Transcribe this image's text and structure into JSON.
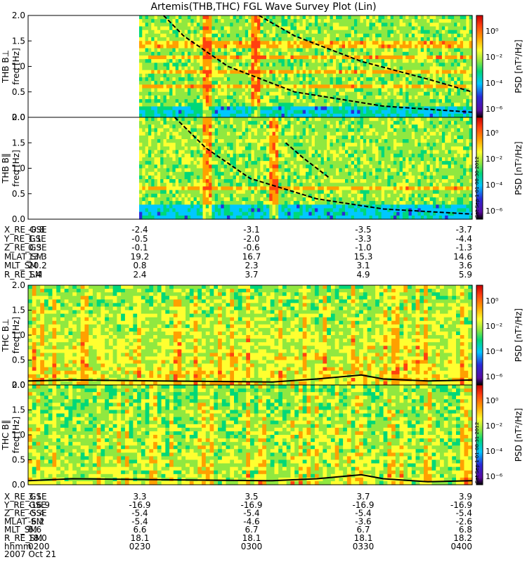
{
  "title": "Artemis(THB,THC) FGL Wave Survey Plot (Lin)",
  "colors": {
    "colormap": [
      "#000000",
      "#5a0aa0",
      "#2a2ad8",
      "#00c8ff",
      "#00d878",
      "#90e840",
      "#ffff30",
      "#ffa000",
      "#ff4010",
      "#c80000"
    ],
    "overlay_line": "#000000"
  },
  "chart_data": [
    {
      "type": "heatmap",
      "panel": "THB Bperp",
      "ylabel_prefix": "THB B",
      "ylabel_symbol": "⊥",
      "ylabel_freq": "freq [Hz]",
      "yticks": [
        "0.0",
        "0.5",
        "1.0",
        "1.5",
        "2.0"
      ],
      "ylim": [
        0,
        2.0
      ],
      "colorbar_label": "PSD [nT²/Hz]",
      "colorbar_ticks": [
        "10⁰",
        "10⁻²",
        "10⁻⁴",
        "10⁻⁶"
      ],
      "data_start_fraction": 0.25,
      "gap_fraction": 0.0,
      "strong_bands_hz": [
        0.25,
        0.6,
        0.9,
        1.2,
        1.45
      ],
      "vertical_spikes": [
        0.4,
        0.51
      ],
      "overlays": [
        {
          "style": "dashed",
          "points": [
            [
              0.305,
              2.0
            ],
            [
              0.35,
              1.6
            ],
            [
              0.45,
              1.0
            ],
            [
              0.6,
              0.5
            ],
            [
              0.8,
              0.22
            ],
            [
              1.0,
              0.1
            ]
          ]
        },
        {
          "style": "dashed",
          "points": [
            [
              0.52,
              2.0
            ],
            [
              0.6,
              1.6
            ],
            [
              0.75,
              1.1
            ],
            [
              0.9,
              0.75
            ],
            [
              1.0,
              0.5
            ]
          ]
        }
      ]
    },
    {
      "type": "heatmap",
      "panel": "THB Bpar",
      "ylabel_prefix": "THB B",
      "ylabel_symbol": "‖",
      "ylabel_freq": "freq [Hz]",
      "yticks": [
        "0.0",
        "0.5",
        "1.0",
        "1.5",
        "2.0"
      ],
      "ylim": [
        0,
        2.0
      ],
      "colorbar_label": "PSD [nT²/Hz]",
      "colorbar_ticks": [
        "10⁰",
        "10⁻²",
        "10⁻⁴",
        "10⁻⁶"
      ],
      "side_label": "Sat Sep 1 01:08:30 2012",
      "data_start_fraction": 0.25,
      "gap_fraction": 0.0,
      "strong_bands_hz": [
        0.3,
        0.6
      ],
      "vertical_spikes": [
        0.4,
        0.55
      ],
      "overlays": [
        {
          "style": "dashed",
          "points": [
            [
              0.33,
              2.0
            ],
            [
              0.4,
              1.4
            ],
            [
              0.5,
              0.8
            ],
            [
              0.65,
              0.4
            ],
            [
              0.8,
              0.2
            ],
            [
              1.0,
              0.1
            ]
          ]
        },
        {
          "style": "dashed",
          "points": [
            [
              0.58,
              1.5
            ],
            [
              0.62,
              1.2
            ],
            [
              0.68,
              0.8
            ]
          ]
        }
      ]
    },
    {
      "type": "heatmap",
      "panel": "THC Bperp",
      "ylabel_prefix": "THC B",
      "ylabel_symbol": "⊥",
      "ylabel_freq": "freq [Hz]",
      "yticks": [
        "0.0",
        "0.5",
        "1.0",
        "1.5",
        "2.0"
      ],
      "ylim": [
        0,
        2.0
      ],
      "colorbar_label": "PSD [nT²/Hz]",
      "colorbar_ticks": [
        "10⁰",
        "10⁻²",
        "10⁻⁴",
        "10⁻⁶"
      ],
      "data_start_fraction": 0.0,
      "intensity": "high",
      "overlays": [
        {
          "style": "solid",
          "points": [
            [
              0.0,
              0.08
            ],
            [
              0.1,
              0.1
            ],
            [
              0.3,
              0.08
            ],
            [
              0.55,
              0.06
            ],
            [
              0.65,
              0.12
            ],
            [
              0.75,
              0.2
            ],
            [
              0.8,
              0.12
            ],
            [
              0.9,
              0.08
            ],
            [
              1.0,
              0.1
            ]
          ]
        }
      ]
    },
    {
      "type": "heatmap",
      "panel": "THC Bpar",
      "ylabel_prefix": "THC B",
      "ylabel_symbol": "‖",
      "ylabel_freq": "freq [Hz]",
      "yticks": [
        "0.0",
        "0.5",
        "1.0",
        "1.5",
        "2.0"
      ],
      "ylim": [
        0,
        2.0
      ],
      "colorbar_label": "PSD [nT²/Hz]",
      "colorbar_ticks": [
        "10⁰",
        "10⁻²",
        "10⁻⁴",
        "10⁻⁶"
      ],
      "side_label": "Sat Sep 1 01:08:31 2012",
      "data_start_fraction": 0.0,
      "intensity": "medium",
      "overlays": [
        {
          "style": "solid",
          "points": [
            [
              0.0,
              0.08
            ],
            [
              0.1,
              0.12
            ],
            [
              0.3,
              0.1
            ],
            [
              0.55,
              0.08
            ],
            [
              0.65,
              0.12
            ],
            [
              0.75,
              0.2
            ],
            [
              0.8,
              0.12
            ],
            [
              0.9,
              0.06
            ],
            [
              1.0,
              0.08
            ]
          ]
        }
      ]
    }
  ],
  "ephemeris_thb": {
    "rows": [
      {
        "label": "X_RE_GSE",
        "values": [
          "-0.8",
          "-2.4",
          "-3.1",
          "-3.5",
          "-3.7"
        ]
      },
      {
        "label": "Y_RE_GSE",
        "values": [
          "1.1",
          "-0.5",
          "-2.0",
          "-3.3",
          "-4.4"
        ]
      },
      {
        "label": "Z_RE_GSE",
        "values": [
          "0.3",
          "-0.1",
          "-0.6",
          "-1.0",
          "-1.3"
        ]
      },
      {
        "label": "MLAT_SM",
        "values": [
          "13.3",
          "19.2",
          "16.7",
          "15.3",
          "14.6"
        ]
      },
      {
        "label": "MLT_SM",
        "values": [
          "20.2",
          "0.8",
          "2.3",
          "3.1",
          "3.6"
        ]
      },
      {
        "label": "R_RE_SM",
        "values": [
          "1.4",
          "2.4",
          "3.7",
          "4.9",
          "5.9"
        ]
      }
    ]
  },
  "ephemeris_thc": {
    "rows": [
      {
        "label": "X_RE_GSE",
        "values": [
          "3.1",
          "3.3",
          "3.5",
          "3.7",
          "3.9"
        ]
      },
      {
        "label": "Y_RE_GSE",
        "values": [
          "-16.9",
          "-16.9",
          "-16.9",
          "-16.9",
          "-16.9"
        ]
      },
      {
        "label": "Z_RE_GSE",
        "values": [
          "-5.4",
          "-5.4",
          "-5.4",
          "-5.4",
          "-5.4"
        ]
      },
      {
        "label": "MLAT_SM",
        "values": [
          "-6.2",
          "-5.4",
          "-4.6",
          "-3.6",
          "-2.6"
        ]
      },
      {
        "label": "MLT_SM",
        "values": [
          "6.6",
          "6.6",
          "6.7",
          "6.7",
          "6.8"
        ]
      },
      {
        "label": "R_RE_SM",
        "values": [
          "18.0",
          "18.1",
          "18.1",
          "18.1",
          "18.2"
        ]
      },
      {
        "label": "hhmm",
        "values": [
          "0200",
          "0230",
          "0300",
          "0330",
          "0400"
        ]
      }
    ],
    "date": "2007 Oct 21"
  }
}
